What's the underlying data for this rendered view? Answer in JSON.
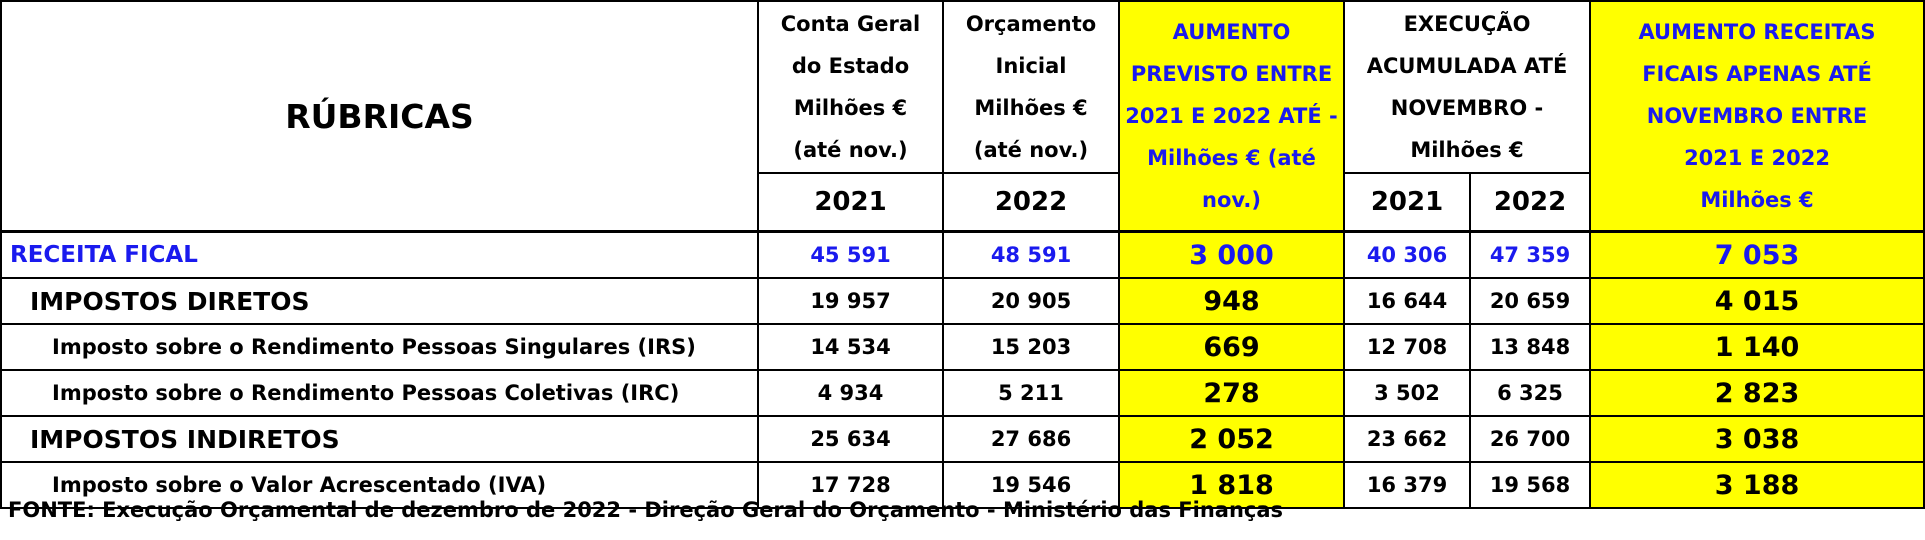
{
  "header": {
    "rubricas": "RÚBRICAS",
    "conta_geral": [
      "Conta Geral",
      "do Estado",
      "Milhões €",
      "(até nov.)"
    ],
    "orcamento_inicial": [
      "Orçamento",
      "Inicial",
      "Milhões €",
      "(até nov.)"
    ],
    "aumento_previsto": [
      "AUMENTO",
      "PREVISTO ENTRE",
      "2021 E 2022 ATÉ -",
      "Milhões € (até",
      "nov.)"
    ],
    "execucao": [
      "EXECUÇÃO",
      "ACUMULADA ATÉ",
      "NOVEMBRO -",
      "Milhões €"
    ],
    "aumento_receitas": [
      "AUMENTO RECEITAS",
      "FICAIS  APENAS ATÉ",
      "NOVEMBRO ENTRE",
      "2021 E 2022",
      "Milhões €"
    ],
    "year_2021": "2021",
    "year_2022": "2022",
    "exec_2021": "2021",
    "exec_2022": "2022"
  },
  "rows": [
    {
      "label": "RECEITA FICAL",
      "cge": "45 591",
      "oi": "48 591",
      "aumento": "3 000",
      "e2021": "40 306",
      "e2022": "47 359",
      "aumento_rec": "7 053"
    },
    {
      "label": "IMPOSTOS DIRETOS",
      "cge": "19 957",
      "oi": "20 905",
      "aumento": "948",
      "e2021": "16 644",
      "e2022": "20 659",
      "aumento_rec": "4 015"
    },
    {
      "label": "Imposto sobre o Rendimento Pessoas Singulares (IRS)",
      "cge": "14 534",
      "oi": "15 203",
      "aumento": "669",
      "e2021": "12 708",
      "e2022": "13 848",
      "aumento_rec": "1 140"
    },
    {
      "label": "Imposto sobre o Rendimento Pessoas Coletivas (IRC)",
      "cge": "4 934",
      "oi": "5 211",
      "aumento": "278",
      "e2021": "3 502",
      "e2022": "6 325",
      "aumento_rec": "2 823"
    },
    {
      "label": "IMPOSTOS INDIRETOS",
      "cge": "25 634",
      "oi": "27 686",
      "aumento": "2 052",
      "e2021": "23 662",
      "e2022": "26 700",
      "aumento_rec": "3 038"
    },
    {
      "label": "Imposto sobre o Valor Acrescentado (IVA)",
      "cge": "17 728",
      "oi": "19 546",
      "aumento": "1 818",
      "e2021": "16 379",
      "e2022": "19 568",
      "aumento_rec": "3 188"
    }
  ],
  "fonte": "FONTE: Execução Orçamental de dezembro de 2022 - Direção Geral do Orçamento - Ministério das Finanças",
  "colors": {
    "highlight": "#ffff00",
    "blue_text": "#1a1aee"
  }
}
